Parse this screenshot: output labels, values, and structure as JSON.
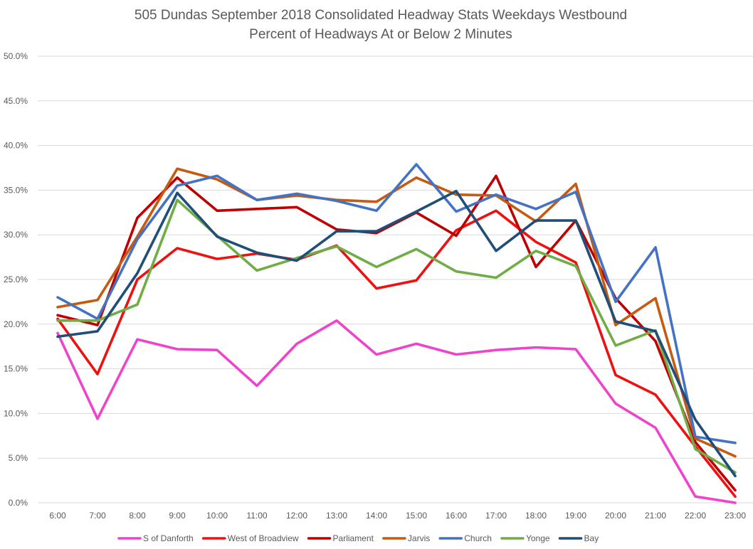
{
  "chart_data": {
    "type": "line",
    "title": "505 Dundas   September 2018  Consolidated Headway Stats Weekdays Westbound",
    "subtitle": "Percent of Headways At or Below 2 Minutes",
    "xlabel": "",
    "ylabel": "",
    "ylim": [
      0,
      50
    ],
    "yticks": [
      "0.0%",
      "5.0%",
      "10.0%",
      "15.0%",
      "20.0%",
      "25.0%",
      "30.0%",
      "35.0%",
      "40.0%",
      "45.0%",
      "50.0%"
    ],
    "grid": "horizontal",
    "legend": "bottom",
    "categories": [
      "6:00",
      "7:00",
      "8:00",
      "9:00",
      "10:00",
      "11:00",
      "12:00",
      "13:00",
      "14:00",
      "15:00",
      "16:00",
      "17:00",
      "18:00",
      "19:00",
      "20:00",
      "21:00",
      "22:00",
      "23:00"
    ],
    "series": [
      {
        "name": "S of Danforth",
        "color": "#ee44cc",
        "values": [
          19.0,
          9.4,
          18.3,
          17.2,
          17.1,
          13.1,
          17.8,
          20.4,
          16.6,
          17.8,
          16.6,
          17.1,
          17.4,
          17.2,
          11.1,
          8.4,
          0.7,
          0.0
        ]
      },
      {
        "name": "West of Broadview",
        "color": "#ee1111",
        "values": [
          20.6,
          14.4,
          25.0,
          28.5,
          27.3,
          27.9,
          27.2,
          28.8,
          24.0,
          24.9,
          30.5,
          32.7,
          29.2,
          26.9,
          14.3,
          12.1,
          6.3,
          0.7
        ]
      },
      {
        "name": "Parliament",
        "color": "#c00000",
        "values": [
          21.0,
          19.9,
          31.9,
          36.4,
          32.7,
          32.9,
          33.1,
          30.6,
          30.2,
          32.5,
          29.9,
          36.6,
          26.4,
          31.6,
          22.9,
          18.1,
          6.8,
          1.4
        ]
      },
      {
        "name": "Jarvis",
        "color": "#c55a11",
        "values": [
          21.9,
          22.7,
          29.8,
          37.4,
          36.2,
          33.9,
          34.4,
          33.9,
          33.7,
          36.4,
          34.5,
          34.4,
          31.5,
          35.7,
          19.9,
          22.9,
          7.2,
          5.2
        ]
      },
      {
        "name": "Church",
        "color": "#4472c4",
        "values": [
          23.0,
          20.6,
          29.5,
          35.5,
          36.6,
          33.9,
          34.6,
          33.8,
          32.7,
          37.9,
          32.6,
          34.5,
          32.9,
          34.8,
          22.5,
          28.6,
          7.4,
          6.7
        ]
      },
      {
        "name": "Yonge",
        "color": "#70ad47",
        "values": [
          20.4,
          20.4,
          22.2,
          33.9,
          29.9,
          26.0,
          27.4,
          28.7,
          26.4,
          28.4,
          25.9,
          25.2,
          28.2,
          26.5,
          17.6,
          19.3,
          6.0,
          3.4
        ]
      },
      {
        "name": "Bay",
        "color": "#1f4e79",
        "values": [
          18.6,
          19.2,
          25.7,
          34.7,
          29.8,
          28.0,
          27.1,
          30.4,
          30.4,
          32.6,
          34.9,
          28.2,
          31.6,
          31.6,
          20.3,
          19.2,
          9.3,
          3.0
        ]
      }
    ]
  }
}
